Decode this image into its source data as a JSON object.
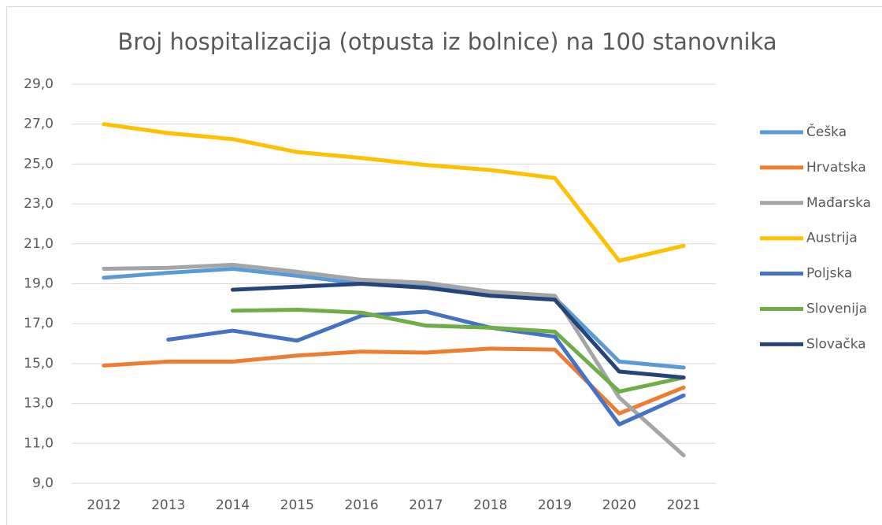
{
  "chart_data": {
    "type": "line",
    "title": "Broj hospitalizacija (otpusta iz bolnice) na 100 stanovnika",
    "categories": [
      "2012",
      "2013",
      "2014",
      "2015",
      "2016",
      "2017",
      "2018",
      "2019",
      "2020",
      "2021"
    ],
    "series": [
      {
        "name": "Češka",
        "color": "#5b9bd5",
        "values": [
          19.3,
          19.55,
          19.75,
          19.4,
          19.0,
          18.95,
          18.5,
          18.3,
          15.1,
          14.8
        ]
      },
      {
        "name": "Hrvatska",
        "color": "#ed7d31",
        "values": [
          14.9,
          15.1,
          15.1,
          15.4,
          15.6,
          15.55,
          15.75,
          15.7,
          12.5,
          13.8
        ]
      },
      {
        "name": "Mađarska",
        "color": "#a5a5a5",
        "values": [
          19.75,
          19.8,
          19.95,
          19.6,
          19.2,
          19.05,
          18.6,
          18.4,
          13.3,
          10.4
        ]
      },
      {
        "name": "Austrija",
        "color": "#ffc000",
        "values": [
          27.0,
          26.55,
          26.25,
          25.6,
          25.3,
          24.95,
          24.7,
          24.3,
          20.15,
          20.9
        ]
      },
      {
        "name": "Poljska",
        "color": "#4472c4",
        "values": [
          null,
          16.2,
          16.65,
          16.15,
          17.4,
          17.6,
          16.8,
          16.35,
          11.95,
          13.4
        ]
      },
      {
        "name": "Slovenija",
        "color": "#70ad47",
        "values": [
          null,
          null,
          17.65,
          17.7,
          17.55,
          16.9,
          16.8,
          16.6,
          13.6,
          14.3
        ]
      },
      {
        "name": "Slovačka",
        "color": "#264478",
        "values": [
          null,
          null,
          18.7,
          18.85,
          19.0,
          18.8,
          18.4,
          18.2,
          14.6,
          14.3
        ]
      }
    ],
    "ylim": [
      9,
      29
    ],
    "yticks": [
      {
        "value": 9,
        "label": "9,0"
      },
      {
        "value": 11,
        "label": "11,0"
      },
      {
        "value": 13,
        "label": "13,0"
      },
      {
        "value": 15,
        "label": "15,0"
      },
      {
        "value": 17,
        "label": "17,0"
      },
      {
        "value": 19,
        "label": "19,0"
      },
      {
        "value": 21,
        "label": "21,0"
      },
      {
        "value": 23,
        "label": "23,0"
      },
      {
        "value": 25,
        "label": "25,0"
      },
      {
        "value": 27,
        "label": "27,0"
      },
      {
        "value": 29,
        "label": "29,0"
      }
    ],
    "grid": true,
    "legend": "right"
  }
}
